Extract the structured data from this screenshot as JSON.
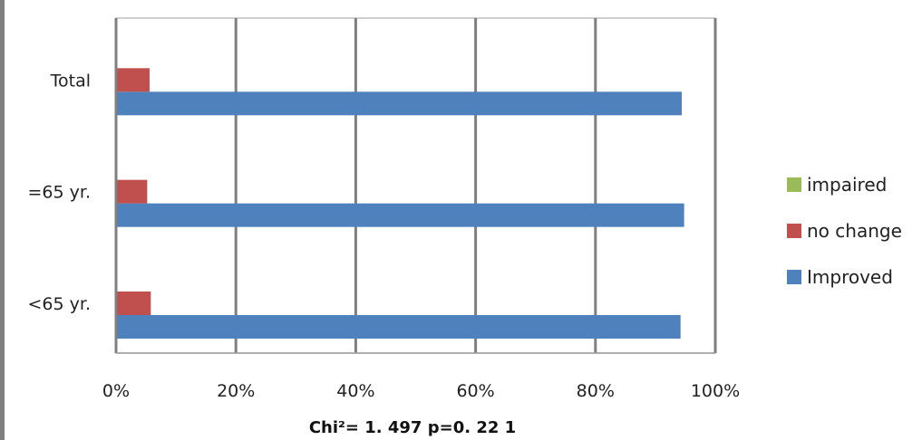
{
  "chart_data": {
    "type": "bar",
    "orientation": "horizontal",
    "categories": [
      "Total",
      "=65 yr.",
      "<65 yr."
    ],
    "series": [
      {
        "name": "impaired",
        "color": "#9bbb59",
        "values": [
          0,
          0,
          0
        ]
      },
      {
        "name": "no change",
        "color": "#c0504d",
        "values": [
          5.6,
          5.2,
          5.8
        ]
      },
      {
        "name": "Improved",
        "color": "#4f81bd",
        "values": [
          94.4,
          94.8,
          94.2
        ]
      }
    ],
    "x_ticks": [
      "0%",
      "20%",
      "40%",
      "60%",
      "80%",
      "100%"
    ],
    "xlim": [
      0,
      100
    ],
    "grid": true,
    "legend_position": "right",
    "footnote": "Chi²= 1. 497 p=0. 22 1"
  }
}
